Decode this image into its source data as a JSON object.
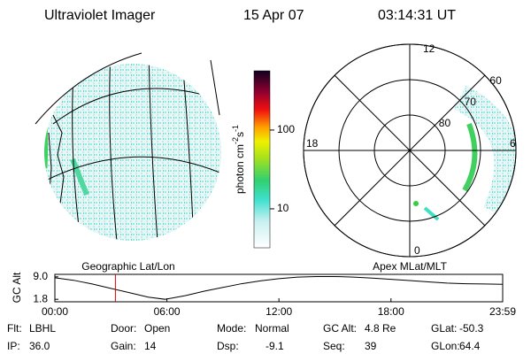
{
  "header": {
    "title": "Ultraviolet Imager",
    "date": "15 Apr 07",
    "time": "03:14:31 UT"
  },
  "colorbar": {
    "label": {
      "text": "photon cm",
      "exp1": "-2",
      "unit": "s",
      "exp2": "-1"
    },
    "lim": [
      3.2,
      565
    ],
    "ticks": [
      10,
      100
    ],
    "log": true
  },
  "left_map": {
    "caption": "Geographic Lat/Lon"
  },
  "polar_map": {
    "caption": "Apex MLat/MLT",
    "mlt_labels": {
      "top": "12",
      "left": "18",
      "right": "6",
      "bottom": "0"
    },
    "lat_rings": [
      80,
      70,
      60
    ]
  },
  "chart_data": {
    "type": "line",
    "ylabel": "GC Alt",
    "x": [
      0,
      1,
      2,
      3,
      4,
      5,
      5.9,
      7,
      8,
      9,
      10,
      11,
      12,
      13,
      14,
      15,
      16,
      17,
      18,
      19,
      20,
      21,
      22,
      23,
      23.983
    ],
    "values": [
      8.7,
      7.9,
      6.7,
      5.3,
      3.9,
      2.5,
      1.8,
      3.0,
      4.4,
      5.6,
      6.8,
      7.7,
      8.4,
      8.9,
      9.1,
      9.1,
      8.9,
      8.6,
      8.2,
      7.8,
      7.4,
      7.0,
      6.8,
      6.7,
      6.6
    ],
    "color": "#000000",
    "marker_x": 3.24,
    "marker_color": "#cc0000",
    "xlim": [
      0,
      23.983
    ],
    "xticks": [
      {
        "value": 0,
        "label": "00:00"
      },
      {
        "value": 6,
        "label": "06:00"
      },
      {
        "value": 12,
        "label": "12:00"
      },
      {
        "value": 18,
        "label": "18:00"
      },
      {
        "value": 23.983,
        "label": "23:59"
      }
    ],
    "ylim": [
      1.0,
      9.8
    ],
    "yticks": [
      {
        "value": 9,
        "label": "9.0"
      },
      {
        "value": 1.8,
        "label": "1.8"
      }
    ]
  },
  "footer": [
    [
      {
        "label": "Flt:",
        "value": "LBHL"
      },
      {
        "label": "Door:",
        "value": "Open"
      },
      {
        "label": "Mode:",
        "value": "Normal"
      },
      {
        "label": "GC Alt:",
        "value": "4.8 Re"
      },
      {
        "label": "GLat:",
        "value": "-50.3"
      }
    ],
    [
      {
        "label": "IP:",
        "value": "36.0"
      },
      {
        "label": "Gain:",
        "value": "14"
      },
      {
        "label": "Dsp:",
        "value": "-9.1"
      },
      {
        "label": "Seq:",
        "value": "39"
      },
      {
        "label": "GLon:",
        "value": "64.4"
      }
    ]
  ]
}
